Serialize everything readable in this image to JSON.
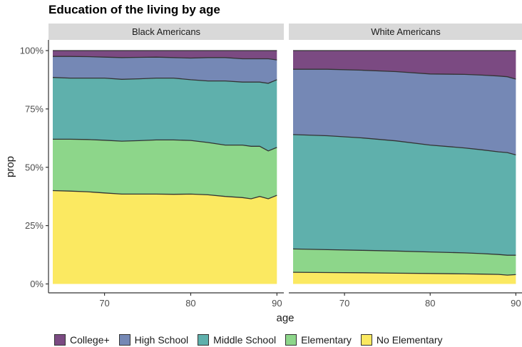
{
  "chart_data": {
    "type": "area",
    "stacked": "proportional",
    "title": "Education of the living by age",
    "xlabel": "age",
    "ylabel": "prop",
    "xlim": [
      63.5,
      90.8
    ],
    "ylim": [
      0,
      1
    ],
    "x_ticks": [
      70,
      80,
      90
    ],
    "y_ticks": [
      0,
      0.25,
      0.5,
      0.75,
      1
    ],
    "y_tick_labels": [
      "0%",
      "25%",
      "50%",
      "75%",
      "100%"
    ],
    "grid": false,
    "legend_position": "bottom",
    "categories": [
      "College+",
      "High School",
      "Middle School",
      "Elementary",
      "No Elementary"
    ],
    "colors": {
      "College+": "#7b4a82",
      "High School": "#7588b5",
      "Middle School": "#5fb0ac",
      "Elementary": "#8dd68a",
      "No Elementary": "#fbe961"
    },
    "panels": [
      {
        "name": "Black Americans",
        "x": [
          64,
          66,
          68,
          70,
          72,
          74,
          76,
          78,
          80,
          82,
          84,
          86,
          87,
          88,
          89,
          90
        ],
        "series": [
          {
            "name": "No Elementary",
            "values": [
              0.4,
              0.398,
              0.395,
              0.39,
              0.385,
              0.385,
              0.385,
              0.384,
              0.385,
              0.382,
              0.375,
              0.37,
              0.365,
              0.375,
              0.365,
              0.38
            ]
          },
          {
            "name": "Elementary",
            "values": [
              0.22,
              0.222,
              0.224,
              0.226,
              0.227,
              0.229,
              0.232,
              0.233,
              0.23,
              0.224,
              0.22,
              0.225,
              0.225,
              0.215,
              0.205,
              0.205
            ]
          },
          {
            "name": "Middle School",
            "values": [
              0.265,
              0.262,
              0.263,
              0.266,
              0.265,
              0.265,
              0.265,
              0.265,
              0.26,
              0.264,
              0.275,
              0.27,
              0.275,
              0.275,
              0.29,
              0.29
            ]
          },
          {
            "name": "High School",
            "values": [
              0.09,
              0.093,
              0.092,
              0.09,
              0.093,
              0.092,
              0.09,
              0.088,
              0.093,
              0.1,
              0.1,
              0.1,
              0.1,
              0.1,
              0.105,
              0.085
            ]
          },
          {
            "name": "College+",
            "values": [
              0.025,
              0.025,
              0.026,
              0.028,
              0.03,
              0.029,
              0.028,
              0.03,
              0.032,
              0.03,
              0.03,
              0.035,
              0.035,
              0.035,
              0.035,
              0.04
            ]
          }
        ]
      },
      {
        "name": "White Americans",
        "x": [
          64,
          68,
          72,
          76,
          80,
          84,
          86,
          88,
          89,
          90
        ],
        "series": [
          {
            "name": "No Elementary",
            "values": [
              0.05,
              0.049,
              0.048,
              0.046,
              0.045,
              0.043,
              0.042,
              0.041,
              0.038,
              0.04
            ]
          },
          {
            "name": "Elementary",
            "values": [
              0.1,
              0.098,
              0.096,
              0.095,
              0.092,
              0.09,
              0.088,
              0.085,
              0.085,
              0.083
            ]
          },
          {
            "name": "Middle School",
            "values": [
              0.49,
              0.488,
              0.482,
              0.472,
              0.458,
              0.45,
              0.445,
              0.44,
              0.44,
              0.43
            ]
          },
          {
            "name": "High School",
            "values": [
              0.28,
              0.285,
              0.29,
              0.297,
              0.305,
              0.315,
              0.32,
              0.325,
              0.325,
              0.325
            ]
          },
          {
            "name": "College+",
            "values": [
              0.08,
              0.08,
              0.084,
              0.09,
              0.1,
              0.102,
              0.105,
              0.109,
              0.112,
              0.122
            ]
          }
        ]
      }
    ]
  }
}
